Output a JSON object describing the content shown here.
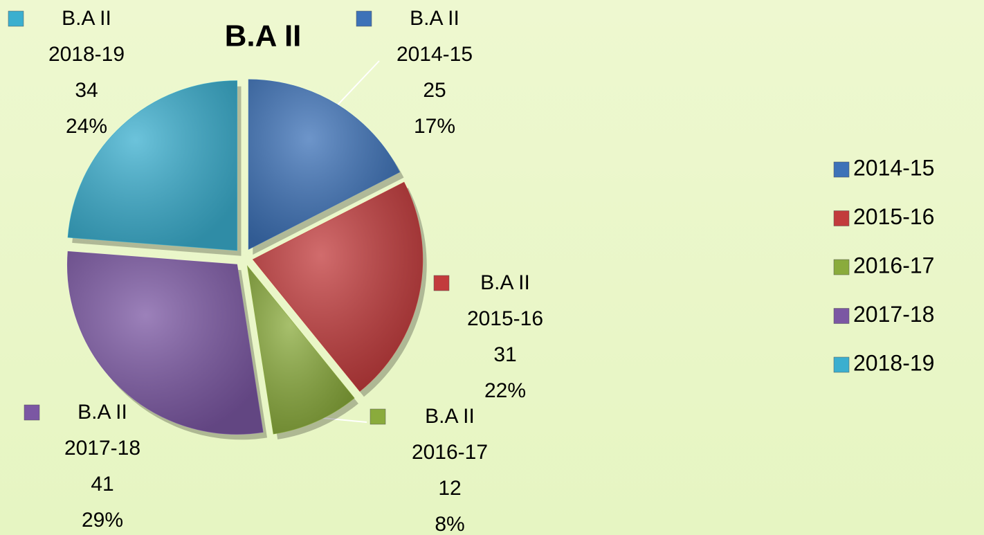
{
  "chart_data": {
    "type": "pie",
    "title": "B.A II",
    "series_name": "B.A II",
    "categories": [
      "2014-15",
      "2015-16",
      "2016-17",
      "2017-18",
      "2018-19"
    ],
    "values": [
      25,
      31,
      12,
      41,
      34
    ],
    "percent_labels": [
      "17%",
      "22%",
      "8%",
      "29%",
      "24%"
    ],
    "colors": [
      "#3d72b8",
      "#c23b3c",
      "#8aab3c",
      "#7b57a3",
      "#3bafcf"
    ],
    "legend": "right"
  }
}
